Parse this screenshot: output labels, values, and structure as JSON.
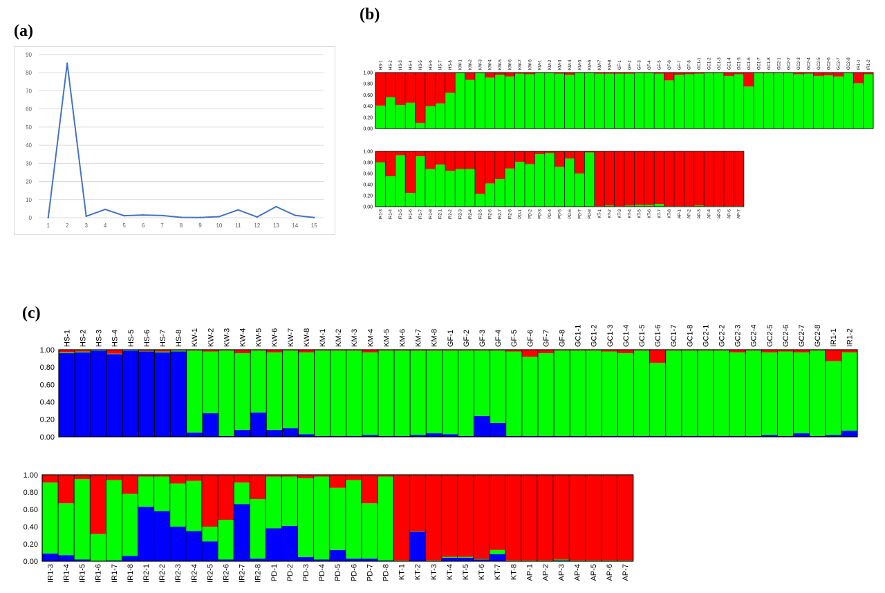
{
  "panels": {
    "a": "(a)",
    "b": "(b)",
    "c": "(c)"
  },
  "colors": {
    "line": "#4472c4",
    "green": "#00ff00",
    "red": "#ff0000",
    "blue": "#0000ff",
    "grid": "#d9d9d9"
  },
  "chart_data": [
    {
      "type": "line",
      "x": [
        1,
        2,
        3,
        4,
        5,
        6,
        7,
        8,
        9,
        10,
        11,
        12,
        13,
        14,
        15
      ],
      "series": [
        {
          "values": [
            0,
            85.2,
            0.8,
            4.6,
            1.1,
            1.5,
            1.2,
            0.2,
            0.1,
            0.6,
            4.3,
            0.4,
            6.1,
            1.3,
            0.1
          ]
        }
      ],
      "yticks": [
        0,
        10,
        20,
        30,
        40,
        50,
        60,
        70,
        80,
        90
      ],
      "ylim": [
        0,
        90
      ],
      "grid": true
    },
    {
      "type": "bar",
      "stacked": true,
      "yticks": [
        "0.00",
        "0.20",
        "0.40",
        "0.60",
        "0.80",
        "1.00"
      ],
      "rows": [
        {
          "categories": [
            "HS-1",
            "HS-2",
            "HS-3",
            "HS-4",
            "HS-5",
            "HS-6",
            "HS-7",
            "HS-8",
            "KW-1",
            "KW-2",
            "KW-3",
            "KW-4",
            "KW-5",
            "KW-6",
            "KW-7",
            "KW-8",
            "KM-1",
            "KM-2",
            "KM-3",
            "KM-4",
            "KM-5",
            "KM-6",
            "KM-7",
            "KM-8",
            "GF-1",
            "GF-2",
            "GF-3",
            "GF-4",
            "GF-5",
            "GF-6",
            "GF-7",
            "GF-8",
            "GC1-1",
            "GC1-2",
            "GC1-3",
            "GC1-4",
            "GC1-5",
            "GC1-6",
            "GC1-7",
            "GC1-8",
            "GC2-1",
            "GC2-2",
            "GC2-3",
            "GC2-4",
            "GC2-5",
            "GC2-6",
            "GC2-7",
            "GC2-8",
            "IR1-1",
            "IR1-2"
          ],
          "green": [
            0.41,
            0.56,
            0.42,
            0.46,
            0.1,
            0.4,
            0.45,
            0.64,
            0.99,
            0.87,
            0.99,
            0.91,
            0.96,
            0.93,
            0.98,
            0.97,
            0.99,
            0.99,
            0.98,
            0.96,
            0.99,
            0.99,
            0.98,
            0.98,
            0.98,
            0.98,
            0.99,
            0.99,
            0.98,
            0.86,
            0.96,
            0.97,
            0.98,
            0.99,
            0.99,
            0.94,
            0.97,
            0.75,
            0.99,
            0.99,
            0.99,
            0.99,
            0.97,
            0.98,
            0.94,
            0.95,
            0.93,
            0.99,
            0.81,
            0.97
          ],
          "red": [
            0.59,
            0.44,
            0.58,
            0.54,
            0.9,
            0.6,
            0.55,
            0.36,
            0.01,
            0.13,
            0.01,
            0.09,
            0.04,
            0.07,
            0.02,
            0.03,
            0.01,
            0.01,
            0.02,
            0.04,
            0.01,
            0.01,
            0.02,
            0.02,
            0.02,
            0.02,
            0.01,
            0.01,
            0.02,
            0.14,
            0.04,
            0.03,
            0.02,
            0.01,
            0.01,
            0.06,
            0.03,
            0.25,
            0.01,
            0.01,
            0.01,
            0.01,
            0.03,
            0.02,
            0.06,
            0.05,
            0.07,
            0.01,
            0.19,
            0.03
          ]
        },
        {
          "categories": [
            "IR1-3",
            "IR1-4",
            "IR1-5",
            "IR1-6",
            "IR1-7",
            "IR1-8",
            "IR2-1",
            "IR2-2",
            "IR2-3",
            "IR2-4",
            "IR2-5",
            "IR2-6",
            "IR2-7",
            "IR2-8",
            "PD-1",
            "PD-2",
            "PD-3",
            "PD-4",
            "PD-5",
            "PD-6",
            "PD-7",
            "PD-8",
            "KT-1",
            "KT-2",
            "KT-3",
            "KT-4",
            "KT-5",
            "KT-6",
            "KT-7",
            "KT-8",
            "AP-1",
            "AP-2",
            "AP-3",
            "AP-4",
            "AP-5",
            "AP-6",
            "AP-7"
          ],
          "green": [
            0.8,
            0.55,
            0.93,
            0.25,
            0.91,
            0.68,
            0.76,
            0.65,
            0.68,
            0.68,
            0.23,
            0.42,
            0.5,
            0.69,
            0.81,
            0.77,
            0.95,
            0.97,
            0.72,
            0.87,
            0.6,
            0.98,
            0.01,
            0.02,
            0.01,
            0.02,
            0.03,
            0.03,
            0.05,
            0.01,
            0.01,
            0.01,
            0.02,
            0.01,
            0.01,
            0.01,
            0.01
          ],
          "red": [
            0.2,
            0.45,
            0.07,
            0.75,
            0.09,
            0.32,
            0.24,
            0.35,
            0.32,
            0.32,
            0.77,
            0.58,
            0.5,
            0.31,
            0.19,
            0.23,
            0.05,
            0.03,
            0.28,
            0.13,
            0.4,
            0.02,
            0.99,
            0.98,
            0.99,
            0.98,
            0.97,
            0.97,
            0.95,
            0.99,
            0.99,
            0.99,
            0.98,
            0.99,
            0.99,
            0.99,
            0.99
          ]
        }
      ]
    },
    {
      "type": "bar",
      "stacked": true,
      "yticks": [
        "0.00",
        "0.20",
        "0.40",
        "0.60",
        "0.80",
        "1.00"
      ],
      "rows": [
        {
          "categories": [
            "HS-1",
            "HS-2",
            "HS-3",
            "HS-4",
            "HS-5",
            "HS-6",
            "HS-7",
            "HS-8",
            "KW-1",
            "KW-2",
            "KW-3",
            "KW-4",
            "KW-5",
            "KW-6",
            "KW-7",
            "KW-8",
            "KM-1",
            "KM-2",
            "KM-3",
            "KM-4",
            "KM-5",
            "KM-6",
            "KM-7",
            "KM-8",
            "GF-1",
            "GF-2",
            "GF-3",
            "GF-4",
            "GF-5",
            "GF-6",
            "GF-7",
            "GF-8",
            "GC1-1",
            "GC1-2",
            "GC1-3",
            "GC1-4",
            "GC1-5",
            "GC1-6",
            "GC1-7",
            "GC1-8",
            "GC2-1",
            "GC2-2",
            "GC2-3",
            "GC2-4",
            "GC2-5",
            "GC2-6",
            "GC2-7",
            "GC2-8",
            "IR1-1",
            "IR1-2"
          ],
          "blue": [
            0.96,
            0.97,
            0.99,
            0.95,
            0.99,
            0.98,
            0.97,
            0.98,
            0.05,
            0.27,
            0.01,
            0.08,
            0.28,
            0.08,
            0.1,
            0.03,
            0.01,
            0.01,
            0.01,
            0.02,
            0.01,
            0.01,
            0.02,
            0.04,
            0.03,
            0.01,
            0.24,
            0.16,
            0.01,
            0.01,
            0.01,
            0.01,
            0.01,
            0.01,
            0.01,
            0.01,
            0.01,
            0.01,
            0.01,
            0.01,
            0.01,
            0.01,
            0.01,
            0.01,
            0.02,
            0.01,
            0.04,
            0.01,
            0.02,
            0.07
          ],
          "green": [
            0.01,
            0.01,
            0.005,
            0.005,
            0.005,
            0.005,
            0.01,
            0.01,
            0.94,
            0.71,
            0.98,
            0.88,
            0.71,
            0.89,
            0.89,
            0.94,
            0.98,
            0.98,
            0.98,
            0.95,
            0.98,
            0.98,
            0.97,
            0.95,
            0.96,
            0.98,
            0.75,
            0.83,
            0.97,
            0.91,
            0.95,
            0.98,
            0.98,
            0.98,
            0.97,
            0.95,
            0.98,
            0.84,
            0.98,
            0.98,
            0.98,
            0.98,
            0.96,
            0.98,
            0.95,
            0.97,
            0.93,
            0.98,
            0.85,
            0.9
          ],
          "red": [
            0.03,
            0.02,
            0.005,
            0.045,
            0.005,
            0.015,
            0.02,
            0.01,
            0.01,
            0.02,
            0.01,
            0.04,
            0.01,
            0.03,
            0.01,
            0.03,
            0.01,
            0.01,
            0.01,
            0.03,
            0.01,
            0.01,
            0.01,
            0.01,
            0.01,
            0.01,
            0.01,
            0.01,
            0.02,
            0.08,
            0.04,
            0.01,
            0.01,
            0.01,
            0.02,
            0.04,
            0.01,
            0.15,
            0.01,
            0.01,
            0.01,
            0.01,
            0.03,
            0.01,
            0.03,
            0.02,
            0.03,
            0.01,
            0.13,
            0.03
          ]
        },
        {
          "categories": [
            "IR1-3",
            "IR1-4",
            "IR1-5",
            "IR1-6",
            "IR1-7",
            "IR1-8",
            "IR2-1",
            "IR2-2",
            "IR2-3",
            "IR2-4",
            "IR2-5",
            "IR2-6",
            "IR2-7",
            "IR2-8",
            "PD-1",
            "PD-2",
            "PD-3",
            "PD-4",
            "PD-5",
            "PD-6",
            "PD-7",
            "PD-8",
            "KT-1",
            "KT-2",
            "KT-3",
            "KT-4",
            "KT-5",
            "KT-6",
            "KT-7",
            "KT-8",
            "AP-1",
            "AP-2",
            "AP-3",
            "AP-4",
            "AP-5",
            "AP-6",
            "AP-7"
          ],
          "blue": [
            0.09,
            0.07,
            0.02,
            0.005,
            0.01,
            0.06,
            0.63,
            0.58,
            0.4,
            0.35,
            0.23,
            0.02,
            0.66,
            0.03,
            0.38,
            0.41,
            0.05,
            0.02,
            0.13,
            0.03,
            0.03,
            0.01,
            0.005,
            0.34,
            0.005,
            0.04,
            0.04,
            0.02,
            0.08,
            0.005,
            0.005,
            0.005,
            0.01,
            0.005,
            0.005,
            0.005,
            0.005
          ],
          "green": [
            0.82,
            0.6,
            0.93,
            0.31,
            0.93,
            0.72,
            0.35,
            0.4,
            0.5,
            0.58,
            0.17,
            0.46,
            0.25,
            0.69,
            0.6,
            0.57,
            0.91,
            0.96,
            0.72,
            0.91,
            0.64,
            0.97,
            0.005,
            0.005,
            0.005,
            0.01,
            0.01,
            0.005,
            0.05,
            0.005,
            0.005,
            0.005,
            0.01,
            0.005,
            0.005,
            0.005,
            0.005
          ],
          "red": [
            0.09,
            0.33,
            0.05,
            0.685,
            0.06,
            0.22,
            0.02,
            0.02,
            0.1,
            0.07,
            0.6,
            0.52,
            0.09,
            0.28,
            0.02,
            0.02,
            0.04,
            0.02,
            0.15,
            0.06,
            0.33,
            0.02,
            0.99,
            0.655,
            0.99,
            0.95,
            0.95,
            0.975,
            0.87,
            0.99,
            0.99,
            0.99,
            0.98,
            0.99,
            0.99,
            0.99,
            0.99
          ]
        }
      ]
    }
  ]
}
